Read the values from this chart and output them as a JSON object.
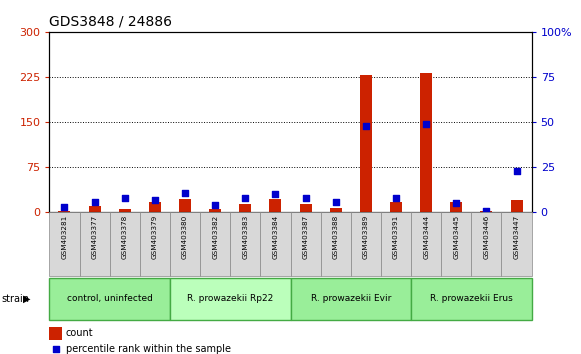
{
  "title": "GDS3848 / 24886",
  "samples": [
    "GSM403281",
    "GSM403377",
    "GSM403378",
    "GSM403379",
    "GSM403380",
    "GSM403382",
    "GSM403383",
    "GSM403384",
    "GSM403387",
    "GSM403388",
    "GSM403389",
    "GSM403391",
    "GSM403444",
    "GSM403445",
    "GSM403446",
    "GSM403447"
  ],
  "count": [
    2,
    10,
    5,
    18,
    22,
    5,
    14,
    22,
    14,
    8,
    228,
    18,
    232,
    18,
    3,
    20
  ],
  "percentile": [
    3,
    6,
    8,
    7,
    11,
    4,
    8,
    10,
    8,
    6,
    48,
    8,
    49,
    5,
    1,
    23
  ],
  "groups": [
    {
      "label": "control, uninfected",
      "start": 0,
      "end": 4,
      "color": "#99ee99"
    },
    {
      "label": "R. prowazekii Rp22",
      "start": 4,
      "end": 8,
      "color": "#bbffbb"
    },
    {
      "label": "R. prowazekii Evir",
      "start": 8,
      "end": 12,
      "color": "#99ee99"
    },
    {
      "label": "R. prowazekii Erus",
      "start": 12,
      "end": 16,
      "color": "#99ee99"
    }
  ],
  "left_yticks": [
    0,
    75,
    150,
    225,
    300
  ],
  "right_yticks": [
    0,
    25,
    50,
    75,
    100
  ],
  "left_color": "#cc2200",
  "right_color": "#0000cc",
  "bar_color": "#cc2200",
  "dot_color": "#0000cc",
  "legend_count_label": "count",
  "legend_pct_label": "percentile rank within the sample",
  "sample_box_color": "#d8d8d8",
  "group_border_color": "#44aa44"
}
